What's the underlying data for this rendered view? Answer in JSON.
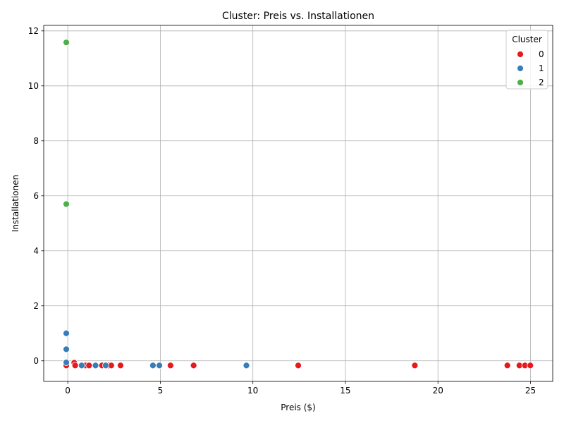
{
  "chart_data": {
    "type": "scatter",
    "title": "Cluster: Preis vs. Installationen",
    "xlabel": "Preis ($)",
    "ylabel": "Installationen",
    "xlim": [
      -1.3,
      26.2
    ],
    "ylim": [
      -0.75,
      12.2
    ],
    "x_ticks": [
      0,
      5,
      10,
      15,
      20,
      25
    ],
    "x_tick_labels": [
      "0",
      "5",
      "10",
      "15",
      "20",
      "25"
    ],
    "y_ticks": [
      0,
      2,
      4,
      6,
      8,
      10,
      12
    ],
    "y_tick_labels": [
      "0",
      "2",
      "4",
      "6",
      "8",
      "10",
      "12"
    ],
    "grid": true,
    "legend": {
      "title": "Cluster",
      "placement": "top-right"
    },
    "series": [
      {
        "name": "0",
        "color": "#e41a1c",
        "points": [
          [
            -0.08,
            -0.17
          ],
          [
            0.35,
            -0.07
          ],
          [
            0.4,
            -0.17
          ],
          [
            0.95,
            -0.17
          ],
          [
            1.15,
            -0.17
          ],
          [
            1.85,
            -0.17
          ],
          [
            2.2,
            -0.17
          ],
          [
            2.35,
            -0.17
          ],
          [
            2.85,
            -0.17
          ],
          [
            5.55,
            -0.17
          ],
          [
            6.8,
            -0.17
          ],
          [
            12.45,
            -0.17
          ],
          [
            18.75,
            -0.17
          ],
          [
            23.75,
            -0.17
          ],
          [
            24.4,
            -0.17
          ],
          [
            24.7,
            -0.17
          ],
          [
            24.99,
            -0.17
          ]
        ]
      },
      {
        "name": "1",
        "color": "#377eb8",
        "points": [
          [
            -0.08,
            1.0
          ],
          [
            -0.08,
            0.42
          ],
          [
            -0.08,
            -0.06
          ],
          [
            0.75,
            -0.17
          ],
          [
            1.5,
            -0.17
          ],
          [
            2.05,
            -0.17
          ],
          [
            4.6,
            -0.17
          ],
          [
            4.95,
            -0.17
          ],
          [
            9.65,
            -0.17
          ]
        ]
      },
      {
        "name": "2",
        "color": "#4daf4a",
        "points": [
          [
            -0.08,
            11.58
          ],
          [
            -0.08,
            5.7
          ]
        ]
      }
    ]
  }
}
